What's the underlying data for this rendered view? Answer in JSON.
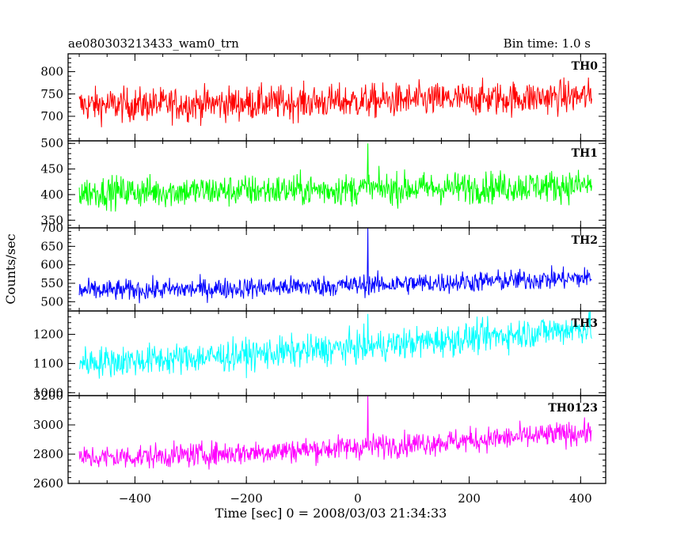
{
  "header": {
    "title": "ae080303213433_wam0_trn",
    "bin_time": "Bin time: 1.0 s"
  },
  "chart_data": {
    "type": "line",
    "title": "ae080303213433_wam0_trn",
    "xlabel": "Time [sec] 0 = 2008/03/03 21:34:33",
    "ylabel": "Counts/sec",
    "xlim": [
      -520,
      445
    ],
    "x_range": [
      -500,
      420
    ],
    "x_ticks": [
      -400,
      -200,
      0,
      200,
      400
    ],
    "x_tick_labels": [
      "−400",
      "−200",
      "0",
      "200",
      "400"
    ],
    "grid": false,
    "legend": "none",
    "panels": [
      {
        "name": "TH0",
        "color": "#ff0000",
        "ylim": [
          645,
          840
        ],
        "y_ticks": [
          700,
          750,
          800
        ],
        "base": 725,
        "end": 745,
        "noise": 32,
        "spikes": []
      },
      {
        "name": "TH1",
        "color": "#00ff00",
        "ylim": [
          335,
          505
        ],
        "y_ticks": [
          350,
          400,
          450,
          500
        ],
        "base": 405,
        "end": 418,
        "noise": 26,
        "spikes": [
          {
            "x": 18,
            "y": 500
          }
        ]
      },
      {
        "name": "TH2",
        "color": "#0000ff",
        "ylim": [
          475,
          700
        ],
        "y_ticks": [
          500,
          550,
          600,
          650,
          700
        ],
        "base": 530,
        "end": 565,
        "noise": 24,
        "spikes": [
          {
            "x": 18,
            "y": 700
          }
        ]
      },
      {
        "name": "TH3",
        "color": "#00ffff",
        "ylim": [
          990,
          1280
        ],
        "y_ticks": [
          1000,
          1100,
          1200
        ],
        "base": 1105,
        "end": 1225,
        "noise": 45,
        "spikes": [
          {
            "x": 18,
            "y": 1270
          }
        ]
      },
      {
        "name": "TH0123",
        "color": "#ff00ff",
        "ylim": [
          2600,
          3200
        ],
        "y_ticks": [
          2600,
          2800,
          3000,
          3200
        ],
        "base": 2775,
        "end": 2950,
        "noise": 70,
        "spikes": [
          {
            "x": 18,
            "y": 3200
          }
        ]
      }
    ]
  }
}
